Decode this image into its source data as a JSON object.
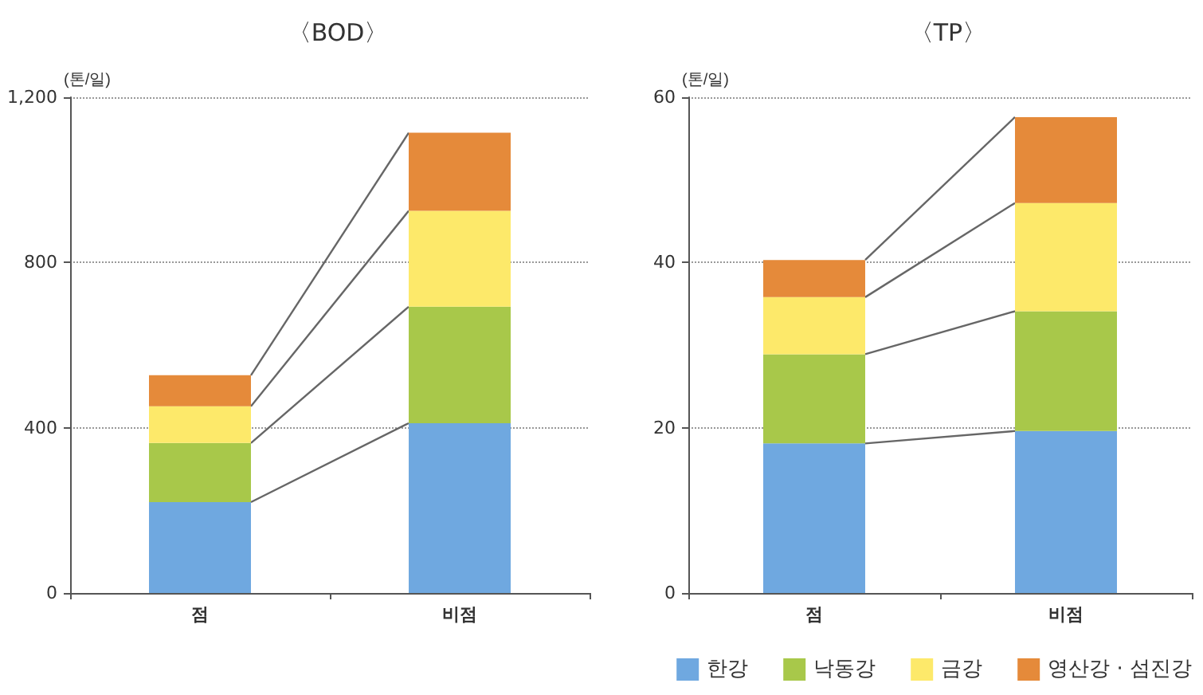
{
  "chart_data": [
    {
      "type": "bar",
      "title": "〈BOD〉",
      "ylabel": "(톤/일)",
      "categories": [
        "점",
        "비점"
      ],
      "stacked": true,
      "ylim": [
        0,
        1200
      ],
      "yticks": [
        0,
        400,
        800,
        {
          "value": 1200,
          "label": "1,200"
        }
      ],
      "grid": "y",
      "legend": false,
      "series": [
        {
          "color": "#6fa8e0",
          "values": [
            220,
            411
          ]
        },
        {
          "color": "#a8c84a",
          "values": [
            143,
            282
          ]
        },
        {
          "color": "#fde96a",
          "values": [
            89,
            232
          ]
        },
        {
          "color": "#e58a3a",
          "values": [
            75,
            189
          ]
        }
      ]
    },
    {
      "type": "bar",
      "title": "〈TP〉",
      "ylabel": "(톤/일)",
      "categories": [
        "점",
        "비점"
      ],
      "stacked": true,
      "ylim": [
        0,
        60
      ],
      "yticks": [
        0,
        20,
        40,
        60
      ],
      "grid": "y",
      "legend": "bottom right",
      "series": [
        {
          "name": "한강",
          "color": "#6fa8e0",
          "values": [
            18.1,
            19.6
          ]
        },
        {
          "name": "낙동강",
          "color": "#a8c84a",
          "values": [
            10.8,
            14.5
          ]
        },
        {
          "name": "금강",
          "color": "#fde96a",
          "values": [
            6.9,
            13.1
          ]
        },
        {
          "name": "영산강 · 섬진강",
          "color": "#e58a3a",
          "values": [
            4.5,
            10.4
          ]
        }
      ]
    }
  ]
}
